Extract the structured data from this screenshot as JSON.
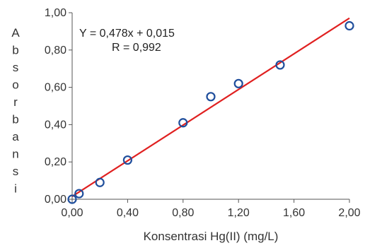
{
  "chart_data": {
    "type": "scatter",
    "title": "",
    "xlabel": "Konsentrasi Hg(II) (mg/L)",
    "ylabel": "Absorbansi",
    "xlim": [
      0,
      2.0
    ],
    "ylim": [
      0,
      1.0
    ],
    "x_ticks": [
      "0,00",
      "0,40",
      "0,80",
      "1,20",
      "1,60",
      "2,00"
    ],
    "y_ticks": [
      "0,00",
      "0,20",
      "0,40",
      "0,60",
      "0,80",
      "1,00"
    ],
    "grid": false,
    "legend": "none",
    "series": [
      {
        "marker": "open-circle",
        "color": "#1f4e9c",
        "points": [
          {
            "x": 0.0,
            "y": 0.0
          },
          {
            "x": 0.05,
            "y": 0.03
          },
          {
            "x": 0.2,
            "y": 0.09
          },
          {
            "x": 0.4,
            "y": 0.21
          },
          {
            "x": 0.8,
            "y": 0.41
          },
          {
            "x": 1.0,
            "y": 0.55
          },
          {
            "x": 1.2,
            "y": 0.62
          },
          {
            "x": 1.5,
            "y": 0.72
          },
          {
            "x": 2.0,
            "y": 0.93
          }
        ]
      }
    ],
    "trendline": {
      "color": "#e02020",
      "slope": 0.478,
      "intercept": 0.015,
      "equation_text": "Y = 0,478x + 0,015",
      "r_text": "R  = 0,992"
    }
  }
}
